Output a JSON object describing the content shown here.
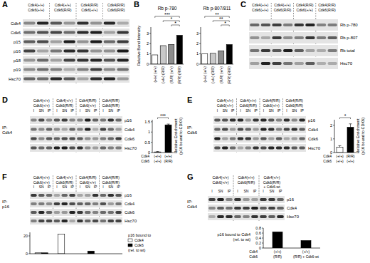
{
  "figure": {
    "panels": [
      {
        "letter": "A",
        "columns": [
          [
            "Cdk4(+/+)",
            "Cdk6(+/+)"
          ],
          [
            "Cdk4(+/+)",
            "Cdk6(R/R)"
          ],
          [
            "Cdk4(R/R)",
            "Cdk6(+/+)"
          ],
          [
            "Cdk4(R/R)",
            "Cdk6(R/R)"
          ]
        ],
        "rows": [
          "Cdk4",
          "Cdk6",
          "p15",
          "p16",
          "p18",
          "p19",
          "Hsc70"
        ]
      },
      {
        "letter": "B"
      },
      {
        "letter": "C",
        "columns": [
          [
            "Cdk4(+/+)",
            "Cdk6(+/+)"
          ],
          [
            "Cdk4(+/+)",
            "Cdk6(R/R)"
          ],
          [
            "Cdk4(R/R)",
            "Cdk6(+/+)"
          ],
          [
            "Cdk4(R/R)",
            "Cdk6(R/R)"
          ]
        ],
        "rows": [
          "Rb p-780",
          "Rb p-807",
          "Rb total",
          "Hsc70"
        ]
      },
      {
        "letter": "D",
        "ip": [
          "IP:",
          "Cdk4"
        ],
        "columns": [
          [
            "Cdk4(+/+)",
            "Cdk6(+/+)"
          ],
          [
            "Cdk4(+/+)",
            "Cdk6(R/R)"
          ],
          [
            "Cdk4(R/R)",
            "Cdk6(+/+)"
          ],
          [
            "Cdk4(R/R)",
            "Cdk6(R/R)"
          ]
        ],
        "lanes": [
          "I",
          "SN",
          "IP"
        ],
        "rows": [
          "p16",
          "Cdk4",
          "Cdk6",
          "Hsc70"
        ]
      },
      {
        "letter": "E",
        "ip": [
          "IP:",
          "Cdk6"
        ],
        "columns": [
          [
            "Cdk4(+/+)",
            "Cdk6(+/+)"
          ],
          [
            "Cdk4(+/+)",
            "Cdk6(R/R)"
          ],
          [
            "Cdk4(R/R)",
            "Cdk6(+/+)"
          ],
          [
            "Cdk4(R/R)",
            "Cdk6(R/R)"
          ]
        ],
        "lanes": [
          "I",
          "SN",
          "IP"
        ],
        "rows": [
          "p16",
          "Cdk4",
          "Cdk6",
          "Hsc70"
        ]
      },
      {
        "letter": "F",
        "ip": [
          "IP:",
          "p16"
        ],
        "columns": [
          [
            "Cdk4(+/+)",
            "Cdk6(+/+)"
          ],
          [
            "Cdk4(+/+)",
            "Cdk6(R/R)"
          ],
          [
            "Cdk4(R/R)",
            "Cdk6(+/+)"
          ],
          [
            "Cdk4(R/R)",
            "Cdk6(R/R)"
          ]
        ],
        "lanes": [
          "I",
          "SN",
          "IP"
        ],
        "rows": [
          "p16",
          "Cdk4",
          "Cdk6",
          "Hsc70"
        ]
      },
      {
        "letter": "G",
        "ip": [
          "IP:",
          "Cdk4"
        ],
        "columns": [
          [
            "Cdk4(+/+)",
            "Cdk6(+/+)"
          ],
          [
            "Cdk4(+/+)",
            "Cdk6(R/R)"
          ],
          [
            "Cdk4(+/+)",
            "Cdk6(R/R)",
            "+ Cdk6-wt"
          ]
        ],
        "lanes": [
          "I",
          "SN",
          "IP"
        ],
        "rows": [
          "p16",
          "Cdk4",
          "Hsc70"
        ]
      }
    ]
  },
  "chart_data": [
    {
      "type": "bar",
      "title": "Rb p-780",
      "y_label": "Relative Band Intensity",
      "categories": [
        "(+/+) (+/+)",
        "(+/+) (R/R)",
        "(R/R) (+/+)",
        "(R/R) (R/R)"
      ],
      "values": [
        0.9,
        1.8,
        1.9,
        2.8
      ],
      "colors": [
        "#ffffff",
        "#c8c8c8",
        "#8c8c8c",
        "#000000"
      ],
      "ylim": [
        0,
        3.6
      ],
      "yticks": [
        0,
        1,
        2,
        3
      ],
      "annotations": [
        "***",
        "*",
        "*"
      ]
    },
    {
      "type": "bar",
      "title": "Rb p-807/811",
      "categories": [
        "(+/+) (+/+)",
        "(+/+) (R/R)",
        "(R/R) (+/+)",
        "(R/R) (R/R)"
      ],
      "values": [
        1.0,
        1.05,
        1.3,
        1.9
      ],
      "colors": [
        "#ffffff",
        "#c8c8c8",
        "#8c8c8c",
        "#000000"
      ],
      "ylim": [
        0,
        3.6
      ],
      "yticks": [
        0,
        1,
        2,
        3
      ],
      "annotations": [
        "**",
        "**",
        "*"
      ]
    },
    {
      "type": "bar",
      "y_label": [
        "Relative Enrichment",
        "(p16 bound to CDK4)"
      ],
      "row_labels": [
        "Cdk4",
        "Cdk6"
      ],
      "categories": [
        "(+/+) (+/+)",
        "(+/+) (R/R)"
      ],
      "values": [
        0.03,
        1.35
      ],
      "errors": [
        0.02,
        0.04
      ],
      "colors": [
        "#ffffff",
        "#000000"
      ],
      "ylim": [
        0,
        1.6
      ],
      "yticks": [
        0,
        0.5,
        1,
        1.5
      ],
      "annotations": [
        "***"
      ]
    },
    {
      "type": "bar",
      "y_label": [
        "Relative Enrichment",
        "(p16 bound to CDK6)"
      ],
      "row_labels": [
        "Cdk4",
        "Cdk6"
      ],
      "categories": [
        "(+/+) (+/+)",
        "(R/R) (+/+)"
      ],
      "values": [
        0.4,
        1.85
      ],
      "errors": [
        0.1,
        0.25
      ],
      "colors": [
        "#ffffff",
        "#000000"
      ],
      "ylim": [
        0,
        2.4
      ],
      "yticks": [
        0,
        1,
        2
      ],
      "annotations": [
        "*"
      ]
    },
    {
      "type": "bar",
      "legend_title": "p16 bound to",
      "legend_note": "(rel. to wt)",
      "legend": "right",
      "categories": [
        null,
        null,
        null,
        null
      ],
      "series": [
        {
          "name": "Cdk4",
          "color": "#ffffff",
          "values": [
            1,
            22,
            null,
            null
          ]
        },
        {
          "name": "Cdk6",
          "color": "#000000",
          "values": [
            1,
            null,
            3,
            null
          ]
        }
      ],
      "ylim": [
        0,
        24
      ],
      "yticks": [
        0,
        20
      ]
    },
    {
      "type": "bar",
      "y_label": [
        "p16 bound to Cdk4",
        "(rel. to wt)"
      ],
      "row_labels": [
        "Cdk4",
        "Cdk6"
      ],
      "categories": [
        "(+/+) (R/R)",
        "(+/+) (R/R) + Cdk6-wt"
      ],
      "values": [
        0.65,
        0.3
      ],
      "colors": [
        "#000000",
        "#000000"
      ],
      "ylim": [
        0,
        0.8
      ],
      "yticks": [
        0,
        0.2,
        0.4,
        0.6,
        0.8
      ]
    }
  ]
}
